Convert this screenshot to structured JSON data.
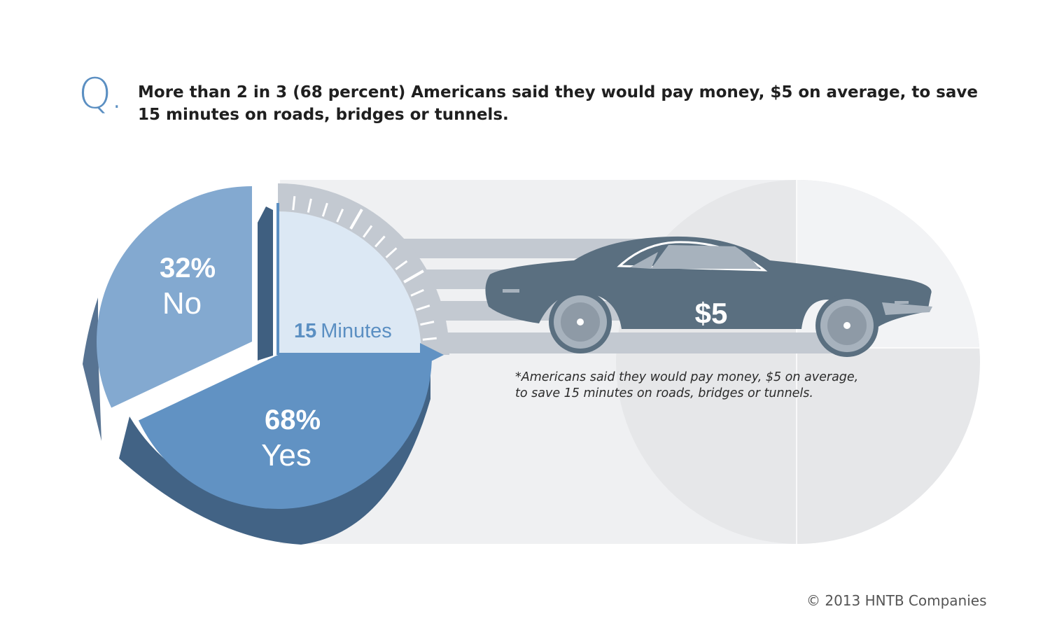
{
  "question": {
    "marker": "Q.",
    "text": "More than 2 in 3 (68 percent) Americans said they would pay money, $5 on average, to save 15 minutes on roads, bridges or tunnels."
  },
  "chart_data": {
    "type": "pie",
    "categories": [
      "No",
      "Yes"
    ],
    "values": [
      32,
      68
    ],
    "value_labels": [
      "32%",
      "68%"
    ],
    "colors": [
      "#83a9d0",
      "#6192c3"
    ],
    "side_colors": [
      "#577392",
      "#426385"
    ],
    "time_label_number": "15",
    "time_label_unit": "Minutes",
    "time_minutes": 15,
    "price_label": "$5"
  },
  "footnote": {
    "line1": "*Americans said they would pay money, $5 on average,",
    "line2": "to save 15 minutes on roads, bridges or tunnels."
  },
  "copyright": "© 2013 HNTB Companies",
  "colors": {
    "accent": "#5b8fc2",
    "car": "#5a6f80",
    "background_band": "#eff0f2",
    "speed_lines": "#c3c9d1"
  }
}
